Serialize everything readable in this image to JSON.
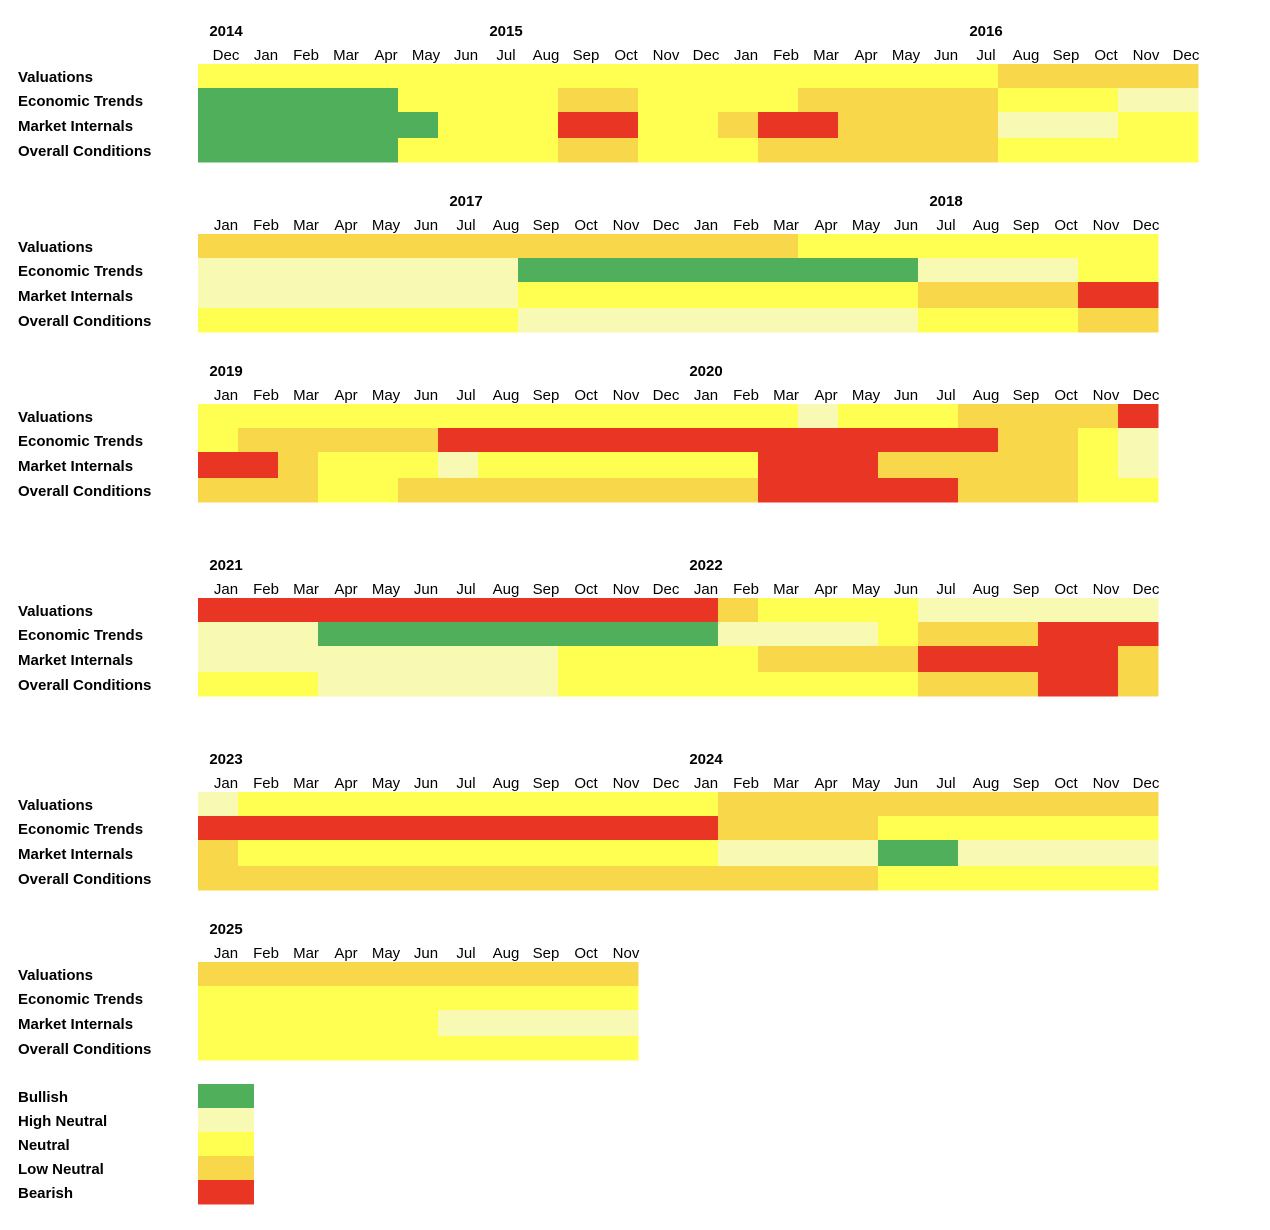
{
  "chart_data": {
    "type": "heatmap",
    "title": "",
    "rows": [
      "Valuations",
      "Economic Trends",
      "Market Internals",
      "Overall Conditions"
    ],
    "states": [
      {
        "code": "B",
        "name": "Bullish",
        "color": "#4faf5b"
      },
      {
        "code": "HN",
        "name": "High Neutral",
        "color": "#f8f9b3"
      },
      {
        "code": "N",
        "name": "Neutral",
        "color": "#ffff52"
      },
      {
        "code": "LN",
        "name": "Low Neutral",
        "color": "#f8d84a"
      },
      {
        "code": "R",
        "name": "Bearish",
        "color": "#e93524"
      }
    ],
    "panels": [
      {
        "months": [
          "Dec",
          "Jan",
          "Feb",
          "Mar",
          "Apr",
          "May",
          "Jun",
          "Jul",
          "Aug",
          "Sep",
          "Oct",
          "Nov",
          "Dec",
          "Jan",
          "Feb",
          "Mar",
          "Apr",
          "May",
          "Jun",
          "Jul",
          "Aug",
          "Sep",
          "Oct",
          "Nov",
          "Dec"
        ],
        "years": [
          {
            "label": "2014",
            "col": 0
          },
          {
            "label": "2015",
            "col": 7
          },
          {
            "label": "2016",
            "col": 19
          }
        ],
        "values": [
          [
            "N",
            "N",
            "N",
            "N",
            "N",
            "N",
            "N",
            "N",
            "N",
            "N",
            "N",
            "N",
            "N",
            "N",
            "N",
            "N",
            "N",
            "N",
            "N",
            "N",
            "LN",
            "LN",
            "LN",
            "LN",
            "LN"
          ],
          [
            "B",
            "B",
            "B",
            "B",
            "B",
            "N",
            "N",
            "N",
            "N",
            "LN",
            "LN",
            "N",
            "N",
            "N",
            "N",
            "LN",
            "LN",
            "LN",
            "LN",
            "LN",
            "N",
            "N",
            "N",
            "HN",
            "HN"
          ],
          [
            "B",
            "B",
            "B",
            "B",
            "B",
            "B",
            "N",
            "N",
            "N",
            "R",
            "R",
            "N",
            "N",
            "LN",
            "R",
            "R",
            "LN",
            "LN",
            "LN",
            "LN",
            "HN",
            "HN",
            "HN",
            "N",
            "N"
          ],
          [
            "B",
            "B",
            "B",
            "B",
            "B",
            "N",
            "N",
            "N",
            "N",
            "LN",
            "LN",
            "N",
            "N",
            "N",
            "LN",
            "LN",
            "LN",
            "LN",
            "LN",
            "LN",
            "N",
            "N",
            "N",
            "N",
            "N"
          ]
        ]
      },
      {
        "months": [
          "Jan",
          "Feb",
          "Mar",
          "Apr",
          "May",
          "Jun",
          "Jul",
          "Aug",
          "Sep",
          "Oct",
          "Nov",
          "Dec",
          "Jan",
          "Feb",
          "Mar",
          "Apr",
          "May",
          "Jun",
          "Jul",
          "Aug",
          "Sep",
          "Oct",
          "Nov",
          "Dec"
        ],
        "years": [
          {
            "label": "2017",
            "col": 6
          },
          {
            "label": "2018",
            "col": 18
          }
        ],
        "values": [
          [
            "LN",
            "LN",
            "LN",
            "LN",
            "LN",
            "LN",
            "LN",
            "LN",
            "LN",
            "LN",
            "LN",
            "LN",
            "LN",
            "LN",
            "LN",
            "N",
            "N",
            "N",
            "N",
            "N",
            "N",
            "N",
            "N",
            "N"
          ],
          [
            "HN",
            "HN",
            "HN",
            "HN",
            "HN",
            "HN",
            "HN",
            "HN",
            "B",
            "B",
            "B",
            "B",
            "B",
            "B",
            "B",
            "B",
            "B",
            "B",
            "HN",
            "HN",
            "HN",
            "HN",
            "N",
            "N"
          ],
          [
            "HN",
            "HN",
            "HN",
            "HN",
            "HN",
            "HN",
            "HN",
            "HN",
            "N",
            "N",
            "N",
            "N",
            "N",
            "N",
            "N",
            "N",
            "N",
            "N",
            "LN",
            "LN",
            "LN",
            "LN",
            "R",
            "R"
          ],
          [
            "N",
            "N",
            "N",
            "N",
            "N",
            "N",
            "N",
            "N",
            "HN",
            "HN",
            "HN",
            "HN",
            "HN",
            "HN",
            "HN",
            "HN",
            "HN",
            "HN",
            "N",
            "N",
            "N",
            "N",
            "LN",
            "LN"
          ]
        ]
      },
      {
        "months": [
          "Jan",
          "Feb",
          "Mar",
          "Apr",
          "May",
          "Jun",
          "Jul",
          "Aug",
          "Sep",
          "Oct",
          "Nov",
          "Dec",
          "Jan",
          "Feb",
          "Mar",
          "Apr",
          "May",
          "Jun",
          "Jul",
          "Aug",
          "Sep",
          "Oct",
          "Nov",
          "Dec"
        ],
        "years": [
          {
            "label": "2019",
            "col": 0
          },
          {
            "label": "2020",
            "col": 12
          }
        ],
        "values": [
          [
            "N",
            "N",
            "N",
            "N",
            "N",
            "N",
            "N",
            "N",
            "N",
            "N",
            "N",
            "N",
            "N",
            "N",
            "N",
            "HN",
            "N",
            "N",
            "N",
            "LN",
            "LN",
            "LN",
            "LN",
            "R"
          ],
          [
            "N",
            "LN",
            "LN",
            "LN",
            "LN",
            "LN",
            "R",
            "R",
            "R",
            "R",
            "R",
            "R",
            "R",
            "R",
            "R",
            "R",
            "R",
            "R",
            "R",
            "R",
            "LN",
            "LN",
            "N",
            "HN"
          ],
          [
            "R",
            "R",
            "LN",
            "N",
            "N",
            "N",
            "HN",
            "N",
            "N",
            "N",
            "N",
            "N",
            "N",
            "N",
            "R",
            "R",
            "R",
            "LN",
            "LN",
            "LN",
            "LN",
            "LN",
            "N",
            "HN"
          ],
          [
            "LN",
            "LN",
            "LN",
            "N",
            "N",
            "LN",
            "LN",
            "LN",
            "LN",
            "LN",
            "LN",
            "LN",
            "LN",
            "LN",
            "R",
            "R",
            "R",
            "R",
            "R",
            "LN",
            "LN",
            "LN",
            "N",
            "N"
          ]
        ]
      },
      {
        "months": [
          "Jan",
          "Feb",
          "Mar",
          "Apr",
          "May",
          "Jun",
          "Jul",
          "Aug",
          "Sep",
          "Oct",
          "Nov",
          "Dec",
          "Jan",
          "Feb",
          "Mar",
          "Apr",
          "May",
          "Jun",
          "Jul",
          "Aug",
          "Sep",
          "Oct",
          "Nov",
          "Dec"
        ],
        "years": [
          {
            "label": "2021",
            "col": 0
          },
          {
            "label": "2022",
            "col": 12
          }
        ],
        "values": [
          [
            "R",
            "R",
            "R",
            "R",
            "R",
            "R",
            "R",
            "R",
            "R",
            "R",
            "R",
            "R",
            "R",
            "LN",
            "N",
            "N",
            "N",
            "N",
            "HN",
            "HN",
            "HN",
            "HN",
            "HN",
            "HN"
          ],
          [
            "HN",
            "HN",
            "HN",
            "B",
            "B",
            "B",
            "B",
            "B",
            "B",
            "B",
            "B",
            "B",
            "B",
            "HN",
            "HN",
            "HN",
            "HN",
            "N",
            "LN",
            "LN",
            "LN",
            "R",
            "R",
            "R"
          ],
          [
            "HN",
            "HN",
            "HN",
            "HN",
            "HN",
            "HN",
            "HN",
            "HN",
            "HN",
            "N",
            "N",
            "N",
            "N",
            "N",
            "LN",
            "LN",
            "LN",
            "LN",
            "R",
            "R",
            "R",
            "R",
            "R",
            "LN"
          ],
          [
            "N",
            "N",
            "N",
            "HN",
            "HN",
            "HN",
            "HN",
            "HN",
            "HN",
            "N",
            "N",
            "N",
            "N",
            "N",
            "N",
            "N",
            "N",
            "N",
            "LN",
            "LN",
            "LN",
            "R",
            "R",
            "LN"
          ]
        ]
      },
      {
        "months": [
          "Jan",
          "Feb",
          "Mar",
          "Apr",
          "May",
          "Jun",
          "Jul",
          "Aug",
          "Sep",
          "Oct",
          "Nov",
          "Dec",
          "Jan",
          "Feb",
          "Mar",
          "Apr",
          "May",
          "Jun",
          "Jul",
          "Aug",
          "Sep",
          "Oct",
          "Nov",
          "Dec"
        ],
        "years": [
          {
            "label": "2023",
            "col": 0
          },
          {
            "label": "2024",
            "col": 12
          }
        ],
        "values": [
          [
            "HN",
            "N",
            "N",
            "N",
            "N",
            "N",
            "N",
            "N",
            "N",
            "N",
            "N",
            "N",
            "N",
            "LN",
            "LN",
            "LN",
            "LN",
            "LN",
            "LN",
            "LN",
            "LN",
            "LN",
            "LN",
            "LN"
          ],
          [
            "R",
            "R",
            "R",
            "R",
            "R",
            "R",
            "R",
            "R",
            "R",
            "R",
            "R",
            "R",
            "R",
            "LN",
            "LN",
            "LN",
            "LN",
            "N",
            "N",
            "N",
            "N",
            "N",
            "N",
            "N"
          ],
          [
            "LN",
            "N",
            "N",
            "N",
            "N",
            "N",
            "N",
            "N",
            "N",
            "N",
            "N",
            "N",
            "N",
            "HN",
            "HN",
            "HN",
            "HN",
            "B",
            "B",
            "HN",
            "HN",
            "HN",
            "HN",
            "HN"
          ],
          [
            "LN",
            "LN",
            "LN",
            "LN",
            "LN",
            "LN",
            "LN",
            "LN",
            "LN",
            "LN",
            "LN",
            "LN",
            "LN",
            "LN",
            "LN",
            "LN",
            "LN",
            "N",
            "N",
            "N",
            "N",
            "N",
            "N",
            "N"
          ]
        ]
      },
      {
        "months": [
          "Jan",
          "Feb",
          "Mar",
          "Apr",
          "May",
          "Jun",
          "Jul",
          "Aug",
          "Sep",
          "Oct",
          "Nov"
        ],
        "years": [
          {
            "label": "2025",
            "col": 0
          }
        ],
        "values": [
          [
            "LN",
            "LN",
            "LN",
            "LN",
            "LN",
            "LN",
            "LN",
            "LN",
            "LN",
            "LN",
            "LN"
          ],
          [
            "N",
            "N",
            "N",
            "N",
            "N",
            "N",
            "N",
            "N",
            "N",
            "N",
            "N"
          ],
          [
            "N",
            "N",
            "N",
            "N",
            "N",
            "N",
            "HN",
            "HN",
            "HN",
            "HN",
            "HN"
          ],
          [
            "N",
            "N",
            "N",
            "N",
            "N",
            "N",
            "N",
            "N",
            "N",
            "N",
            "N"
          ]
        ]
      }
    ]
  }
}
